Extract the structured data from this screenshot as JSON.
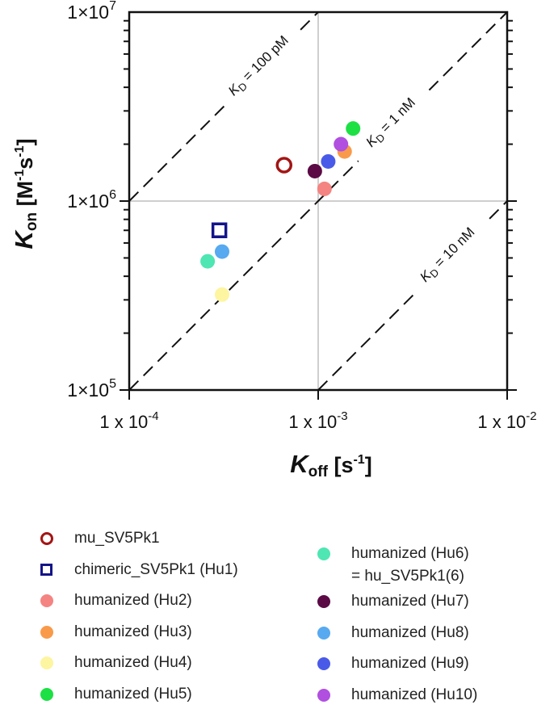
{
  "chart_data": {
    "type": "scatter",
    "x_scale": "log",
    "y_scale": "log",
    "xlim": [
      0.0001,
      0.01
    ],
    "ylim": [
      100000,
      10000000
    ],
    "xlabel_main": "K",
    "xlabel_sub": "off",
    "xlabel_unit": "[s",
    "xlabel_unit_exp": "-1",
    "xlabel_unit_close": "]",
    "ylabel_main": "K",
    "ylabel_sub": "on",
    "ylabel_unit": "[M",
    "ylabel_unit_exp1": "-1",
    "ylabel_unit_mid": "s",
    "ylabel_unit_exp2": "-1",
    "ylabel_unit_close": "]",
    "x_ticks": [
      {
        "value": 0.0001,
        "base": "1 x 10",
        "exp": "-4"
      },
      {
        "value": 0.001,
        "base": "1 x 10",
        "exp": "-3"
      },
      {
        "value": 0.01,
        "base": "1 x 10",
        "exp": "-2"
      }
    ],
    "y_ticks": [
      {
        "value": 100000,
        "base": "1×10",
        "exp": "5"
      },
      {
        "value": 1000000,
        "base": "1×10",
        "exp": "6"
      },
      {
        "value": 10000000,
        "base": "1×10",
        "exp": "7"
      }
    ],
    "kd_lines": [
      {
        "kd": 1e-10,
        "prefix": "K",
        "sub": "D",
        "suffix": " = 100 pM"
      },
      {
        "kd": 1e-09,
        "prefix": "K",
        "sub": "D",
        "suffix": " = 1 nM"
      },
      {
        "kd": 1e-08,
        "prefix": "K",
        "sub": "D",
        "suffix": " = 10 nM"
      }
    ],
    "series": [
      {
        "name": "mu_SV5Pk1",
        "koff": 0.00066,
        "kon": 1550000,
        "color": "#a31515",
        "marker": "circle-open"
      },
      {
        "name": "chimeric_SV5Pk1 (Hu1)",
        "koff": 0.0003,
        "kon": 700000,
        "color": "#14148a",
        "marker": "square-open"
      },
      {
        "name": "humanized (Hu2)",
        "koff": 0.00108,
        "kon": 1160000,
        "color": "#f48481",
        "marker": "circle"
      },
      {
        "name": "humanized (Hu3)",
        "koff": 0.00138,
        "kon": 1830000,
        "color": "#f99a4a",
        "marker": "circle"
      },
      {
        "name": "humanized (Hu4)",
        "koff": 0.00031,
        "kon": 320000,
        "color": "#fdf5a0",
        "marker": "circle"
      },
      {
        "name": "humanized (Hu5)",
        "koff": 0.00153,
        "kon": 2420000,
        "color": "#1de044",
        "marker": "circle"
      },
      {
        "name": "humanized (Hu6)",
        "name_line2": "= hu_SV5Pk1(6)",
        "koff": 0.00026,
        "kon": 480000,
        "color": "#4ee6b2",
        "marker": "circle"
      },
      {
        "name": "humanized (Hu7)",
        "koff": 0.00096,
        "kon": 1440000,
        "color": "#5b0a45",
        "marker": "circle"
      },
      {
        "name": "humanized (Hu8)",
        "koff": 0.00031,
        "kon": 540000,
        "color": "#57a9f0",
        "marker": "circle"
      },
      {
        "name": "humanized (Hu9)",
        "koff": 0.00113,
        "kon": 1620000,
        "color": "#4a5ae8",
        "marker": "circle"
      },
      {
        "name": "humanized (Hu10)",
        "koff": 0.00132,
        "kon": 2000000,
        "color": "#b04fe0",
        "marker": "circle"
      }
    ]
  }
}
